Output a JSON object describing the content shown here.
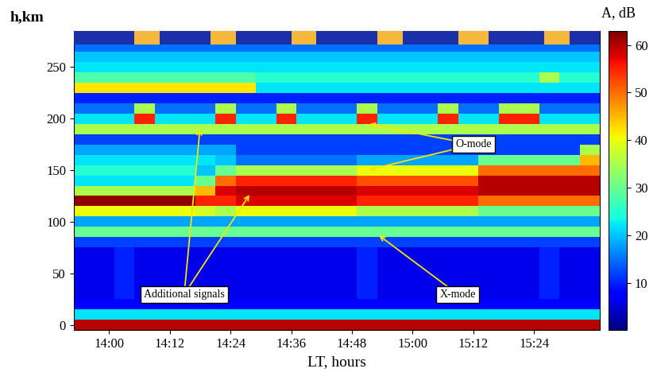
{
  "chart_data": {
    "type": "heatmap",
    "x_label": "LT, hours",
    "y_label": "h,km",
    "colorbar_label": "A, dB",
    "xlim": [
      833,
      937
    ],
    "ylim": [
      -5,
      285
    ],
    "xticks": [
      {
        "value": 840,
        "label": "14:00"
      },
      {
        "value": 852,
        "label": "14:12"
      },
      {
        "value": 864,
        "label": "14:24"
      },
      {
        "value": 876,
        "label": "14:36"
      },
      {
        "value": 888,
        "label": "14:48"
      },
      {
        "value": 900,
        "label": "15:00"
      },
      {
        "value": 912,
        "label": "15:12"
      },
      {
        "value": 924,
        "label": "15:24"
      }
    ],
    "yticks": [
      0,
      50,
      100,
      150,
      200,
      250
    ],
    "x_edges": [
      833,
      837,
      841,
      845,
      849,
      853,
      857,
      861,
      865,
      869,
      873,
      877,
      881,
      885,
      889,
      893,
      897,
      901,
      905,
      909,
      913,
      917,
      921,
      925,
      929,
      933,
      937
    ],
    "y_edges": [
      -5,
      5,
      15,
      25,
      35,
      45,
      55,
      65,
      75,
      85,
      95,
      105,
      115,
      125,
      135,
      145,
      155,
      165,
      175,
      185,
      195,
      205,
      215,
      225,
      235,
      245,
      255,
      265,
      275,
      285
    ],
    "cells": [
      [
        60,
        60,
        60,
        60,
        60,
        60,
        60,
        60,
        60,
        60,
        60,
        60,
        60,
        60,
        60,
        60,
        60,
        60,
        60,
        60,
        60,
        60,
        60,
        60,
        60,
        60
      ],
      [
        22,
        22,
        22,
        22,
        22,
        22,
        22,
        22,
        22,
        22,
        22,
        22,
        22,
        22,
        22,
        22,
        22,
        22,
        22,
        22,
        22,
        22,
        22,
        22,
        22,
        22
      ],
      [
        8,
        8,
        8,
        8,
        8,
        8,
        8,
        8,
        8,
        8,
        8,
        8,
        8,
        8,
        8,
        8,
        8,
        8,
        8,
        8,
        8,
        8,
        8,
        8,
        8,
        8
      ],
      [
        6,
        6,
        10,
        6,
        6,
        6,
        6,
        6,
        6,
        6,
        6,
        6,
        6,
        6,
        10,
        6,
        6,
        6,
        6,
        6,
        6,
        6,
        6,
        10,
        6,
        6
      ],
      [
        6,
        6,
        10,
        6,
        6,
        6,
        6,
        6,
        6,
        6,
        6,
        6,
        6,
        6,
        10,
        6,
        6,
        6,
        6,
        6,
        6,
        6,
        6,
        10,
        6,
        6
      ],
      [
        6,
        6,
        10,
        6,
        6,
        6,
        6,
        6,
        6,
        6,
        6,
        6,
        6,
        6,
        10,
        6,
        6,
        6,
        6,
        6,
        6,
        6,
        6,
        10,
        6,
        6
      ],
      [
        6,
        6,
        10,
        6,
        6,
        6,
        6,
        6,
        6,
        6,
        6,
        6,
        6,
        6,
        10,
        6,
        6,
        6,
        6,
        6,
        6,
        6,
        6,
        10,
        6,
        6
      ],
      [
        6,
        6,
        10,
        6,
        6,
        6,
        6,
        6,
        6,
        6,
        6,
        6,
        6,
        6,
        10,
        6,
        6,
        6,
        6,
        6,
        6,
        6,
        6,
        10,
        6,
        6
      ],
      [
        12,
        12,
        12,
        12,
        12,
        12,
        12,
        12,
        12,
        12,
        12,
        12,
        12,
        12,
        12,
        12,
        12,
        12,
        12,
        12,
        12,
        12,
        12,
        12,
        12,
        12
      ],
      [
        30,
        30,
        30,
        30,
        30,
        30,
        30,
        30,
        30,
        30,
        30,
        30,
        30,
        30,
        30,
        30,
        30,
        30,
        30,
        30,
        30,
        30,
        30,
        30,
        30,
        30
      ],
      [
        18,
        18,
        18,
        18,
        18,
        18,
        18,
        18,
        18,
        18,
        18,
        18,
        18,
        18,
        18,
        18,
        18,
        18,
        18,
        18,
        18,
        18,
        18,
        18,
        18,
        18
      ],
      [
        40,
        40,
        40,
        40,
        40,
        40,
        38,
        35,
        40,
        40,
        40,
        40,
        40,
        40,
        35,
        35,
        35,
        35,
        35,
        35,
        30,
        30,
        30,
        30,
        30,
        30
      ],
      [
        62,
        62,
        62,
        62,
        62,
        62,
        55,
        55,
        58,
        58,
        58,
        58,
        58,
        58,
        55,
        55,
        55,
        55,
        55,
        55,
        50,
        50,
        50,
        50,
        50,
        50
      ],
      [
        35,
        35,
        35,
        35,
        35,
        35,
        45,
        58,
        60,
        60,
        60,
        60,
        60,
        60,
        58,
        58,
        58,
        58,
        58,
        58,
        60,
        60,
        60,
        60,
        60,
        60
      ],
      [
        22,
        22,
        22,
        22,
        22,
        22,
        30,
        50,
        55,
        55,
        55,
        55,
        55,
        55,
        52,
        52,
        52,
        52,
        52,
        52,
        60,
        60,
        60,
        60,
        60,
        60
      ],
      [
        25,
        25,
        25,
        25,
        25,
        25,
        20,
        30,
        35,
        35,
        35,
        35,
        35,
        35,
        40,
        40,
        40,
        40,
        40,
        40,
        50,
        50,
        50,
        50,
        50,
        50
      ],
      [
        22,
        22,
        22,
        22,
        22,
        22,
        22,
        20,
        15,
        15,
        15,
        15,
        15,
        15,
        18,
        18,
        18,
        18,
        18,
        18,
        30,
        30,
        30,
        30,
        30,
        45
      ],
      [
        18,
        18,
        18,
        18,
        18,
        18,
        18,
        18,
        12,
        12,
        12,
        12,
        12,
        12,
        12,
        12,
        12,
        12,
        12,
        12,
        12,
        12,
        12,
        12,
        12,
        35
      ],
      [
        12,
        12,
        12,
        12,
        12,
        12,
        12,
        12,
        12,
        12,
        12,
        12,
        12,
        12,
        12,
        12,
        12,
        12,
        12,
        12,
        12,
        12,
        12,
        12,
        12,
        12
      ],
      [
        35,
        35,
        35,
        35,
        35,
        35,
        35,
        35,
        35,
        35,
        35,
        35,
        35,
        35,
        35,
        35,
        35,
        35,
        35,
        35,
        35,
        35,
        35,
        35,
        35,
        35
      ],
      [
        22,
        22,
        22,
        55,
        22,
        22,
        22,
        55,
        22,
        22,
        55,
        22,
        22,
        22,
        55,
        22,
        22,
        22,
        55,
        22,
        22,
        55,
        55,
        22,
        22,
        22
      ],
      [
        15,
        15,
        15,
        35,
        15,
        15,
        15,
        35,
        15,
        15,
        35,
        15,
        15,
        15,
        35,
        15,
        15,
        15,
        35,
        15,
        15,
        35,
        35,
        15,
        15,
        15
      ],
      [
        10,
        10,
        10,
        10,
        10,
        10,
        10,
        10,
        10,
        10,
        10,
        10,
        10,
        10,
        10,
        10,
        10,
        10,
        10,
        10,
        10,
        10,
        10,
        10,
        10,
        10
      ],
      [
        42,
        42,
        42,
        42,
        42,
        42,
        42,
        42,
        42,
        22,
        22,
        22,
        22,
        22,
        22,
        22,
        22,
        22,
        22,
        22,
        22,
        22,
        22,
        22,
        22,
        22
      ],
      [
        28,
        28,
        28,
        28,
        28,
        28,
        28,
        28,
        28,
        25,
        25,
        25,
        25,
        25,
        25,
        25,
        25,
        25,
        25,
        25,
        25,
        25,
        25,
        35,
        25,
        25
      ],
      [
        22,
        22,
        22,
        22,
        22,
        22,
        22,
        22,
        22,
        22,
        22,
        22,
        22,
        22,
        22,
        22,
        22,
        22,
        22,
        22,
        22,
        22,
        22,
        22,
        22,
        22
      ],
      [
        20,
        20,
        20,
        20,
        20,
        20,
        20,
        20,
        20,
        20,
        20,
        20,
        20,
        20,
        20,
        20,
        20,
        20,
        20,
        20,
        20,
        20,
        20,
        20,
        20,
        20
      ],
      [
        15,
        15,
        15,
        15,
        15,
        15,
        15,
        15,
        15,
        15,
        15,
        15,
        15,
        15,
        15,
        15,
        15,
        15,
        15,
        15,
        15,
        15,
        15,
        15,
        15,
        15
      ],
      [
        12,
        12,
        12,
        12,
        12,
        12,
        12,
        12,
        12,
        12,
        12,
        12,
        12,
        12,
        12,
        12,
        12,
        12,
        12,
        12,
        12,
        12,
        12,
        12,
        12,
        12
      ]
    ],
    "colorbar_range": [
      0,
      63
    ],
    "colorbar_ticks": [
      10,
      20,
      30,
      40,
      50,
      60
    ],
    "heater_on": [
      [
        845,
        850
      ],
      [
        860,
        865
      ],
      [
        876,
        881
      ],
      [
        893,
        898
      ],
      [
        909,
        915
      ],
      [
        926,
        931
      ]
    ],
    "annotations": [
      {
        "text": "O-mode",
        "points": [
          [
            891,
            195
          ],
          [
            891,
            150
          ]
        ]
      },
      {
        "text": "Additional signals",
        "points": [
          [
            858,
            192
          ],
          [
            868,
            128
          ]
        ]
      },
      {
        "text": "X-mode",
        "points": [
          [
            893,
            88
          ]
        ]
      }
    ]
  }
}
